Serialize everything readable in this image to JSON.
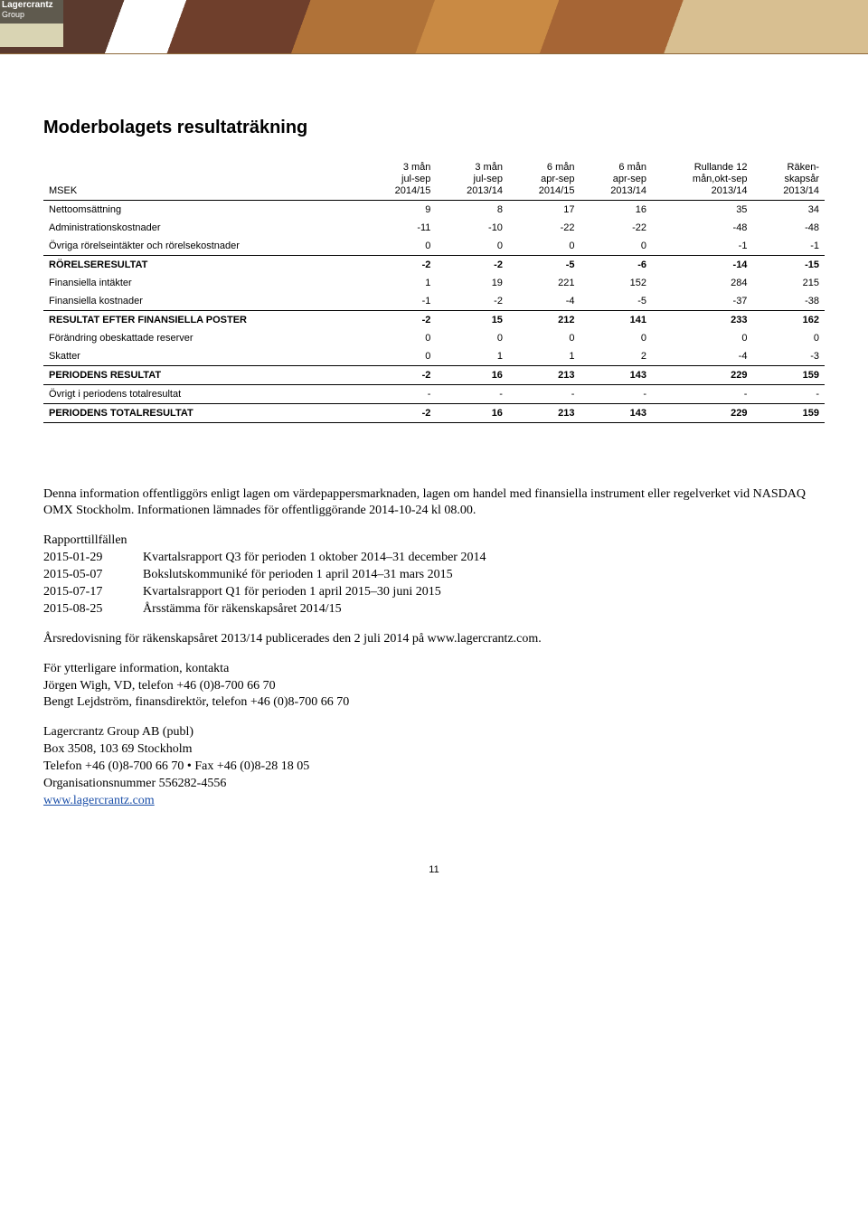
{
  "logo": {
    "line1": "Lagercrantz",
    "line2": "Group"
  },
  "title": "Moderbolagets resultaträkning",
  "table": {
    "row_label_header": "MSEK",
    "columns": [
      {
        "l1": "3 mån",
        "l2": "jul-sep",
        "l3": "2014/15"
      },
      {
        "l1": "3 mån",
        "l2": "jul-sep",
        "l3": "2013/14"
      },
      {
        "l1": "6 mån",
        "l2": "apr-sep",
        "l3": "2014/15"
      },
      {
        "l1": "6 mån",
        "l2": "apr-sep",
        "l3": "2013/14"
      },
      {
        "l1": "Rullande 12",
        "l2": "mån,okt-sep",
        "l3": "2013/14"
      },
      {
        "l1": "Räken-",
        "l2": "skapsår",
        "l3": "2013/14"
      }
    ],
    "rows": [
      {
        "label": "Nettoomsättning",
        "v": [
          "9",
          "8",
          "17",
          "16",
          "35",
          "34"
        ],
        "cls": ""
      },
      {
        "label": "Administrationskostnader",
        "v": [
          "-11",
          "-10",
          "-22",
          "-22",
          "-48",
          "-48"
        ],
        "cls": ""
      },
      {
        "label": "Övriga rörelseintäkter och rörelsekostnader",
        "v": [
          "0",
          "0",
          "0",
          "0",
          "-1",
          "-1"
        ],
        "cls": ""
      },
      {
        "label": "RÖRELSERESULTAT",
        "v": [
          "-2",
          "-2",
          "-5",
          "-6",
          "-14",
          "-15"
        ],
        "cls": "section"
      },
      {
        "label": "Finansiella intäkter",
        "v": [
          "1",
          "19",
          "221",
          "152",
          "284",
          "215"
        ],
        "cls": ""
      },
      {
        "label": "Finansiella kostnader",
        "v": [
          "-1",
          "-2",
          "-4",
          "-5",
          "-37",
          "-38"
        ],
        "cls": ""
      },
      {
        "label": "RESULTAT EFTER FINANSIELLA POSTER",
        "v": [
          "-2",
          "15",
          "212",
          "141",
          "233",
          "162"
        ],
        "cls": "section"
      },
      {
        "label": "Förändring obeskattade reserver",
        "v": [
          "0",
          "0",
          "0",
          "0",
          "0",
          "0"
        ],
        "cls": ""
      },
      {
        "label": "Skatter",
        "v": [
          "0",
          "1",
          "1",
          "2",
          "-4",
          "-3"
        ],
        "cls": ""
      },
      {
        "label": "PERIODENS RESULTAT",
        "v": [
          "-2",
          "16",
          "213",
          "143",
          "229",
          "159"
        ],
        "cls": "section"
      },
      {
        "label": "Övrigt i periodens totalresultat",
        "v": [
          "-",
          "-",
          "-",
          "-",
          "-",
          "-"
        ],
        "cls": "border-top"
      },
      {
        "label": "PERIODENS TOTALRESULTAT",
        "v": [
          "-2",
          "16",
          "213",
          "143",
          "229",
          "159"
        ],
        "cls": "section border-bottom"
      }
    ]
  },
  "info": {
    "disclosure": "Denna information offentliggörs enligt lagen om värdepappersmarknaden, lagen om handel med finansiella instrument eller regelverket vid NASDAQ OMX Stockholm. Informationen lämnades för offentliggörande 2014-10-24 kl 08.00.",
    "rapport_label": "Rapporttillfällen",
    "rapport": [
      {
        "date": "2015-01-29",
        "text": "Kvartalsrapport Q3 för perioden 1 oktober 2014–31 december 2014"
      },
      {
        "date": "2015-05-07",
        "text": "Bokslutskommuniké för perioden 1 april 2014–31 mars 2015"
      },
      {
        "date": "2015-07-17",
        "text": "Kvartalsrapport Q1 för perioden 1 april 2015–30 juni 2015"
      },
      {
        "date": "2015-08-25",
        "text": "Årsstämma för räkenskapsåret 2014/15"
      }
    ],
    "annual": "Årsredovisning för räkenskapsåret 2013/14 publicerades den 2 juli 2014 på www.lagercrantz.com.",
    "contact_header": "För ytterligare information, kontakta",
    "contact1": "Jörgen Wigh, VD, telefon +46 (0)8-700 66 70",
    "contact2": "Bengt Lejdström, finansdirektör, telefon +46 (0)8-700 66 70",
    "company": "Lagercrantz Group AB (publ)",
    "address": "Box 3508, 103 69 Stockholm",
    "phone": "Telefon +46 (0)8-700 66 70  •  Fax +46 (0)8-28 18 05",
    "orgnr": "Organisationsnummer 556282-4556",
    "website": "www.lagercrantz.com"
  },
  "page_number": "11"
}
